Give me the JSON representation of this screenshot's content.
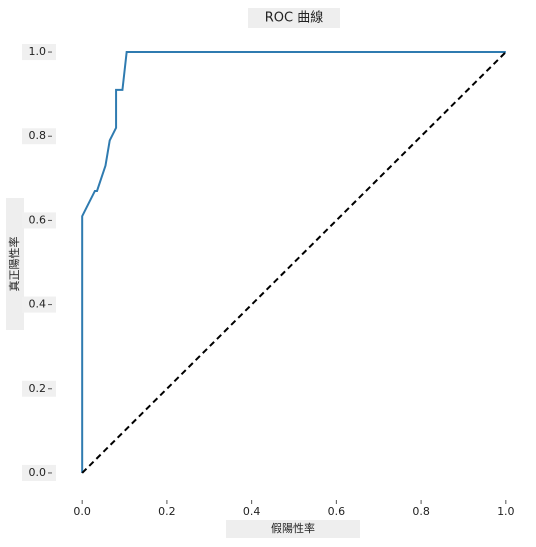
{
  "chart_data": {
    "type": "line",
    "title": "ROC 曲線",
    "xlabel": "假陽性率",
    "ylabel": "真正陽性率",
    "series": [
      {
        "color": "#2f7bb0",
        "dash": false,
        "x": [
          0,
          0,
          0.03,
          0.035,
          0.055,
          0.065,
          0.08,
          0.08,
          0.095,
          0.105,
          1
        ],
        "values": [
          0,
          0.61,
          0.67,
          0.67,
          0.73,
          0.79,
          0.82,
          0.91,
          0.91,
          1,
          1
        ]
      },
      {
        "color": "#000000",
        "dash": true,
        "x": [
          0,
          1
        ],
        "values": [
          0,
          1
        ]
      }
    ],
    "xlim": [
      -0.05,
      1.05
    ],
    "ylim": [
      -0.05,
      1.05
    ],
    "xticks": [
      {
        "value": 0,
        "label": "0.0"
      },
      0.2,
      0.4,
      0.6,
      0.8,
      {
        "value": 1,
        "label": "1.0"
      }
    ],
    "yticks": [
      {
        "value": 0,
        "label": "0.0"
      },
      0.2,
      0.4,
      0.6,
      0.8,
      {
        "value": 1,
        "label": "1.0"
      }
    ]
  }
}
